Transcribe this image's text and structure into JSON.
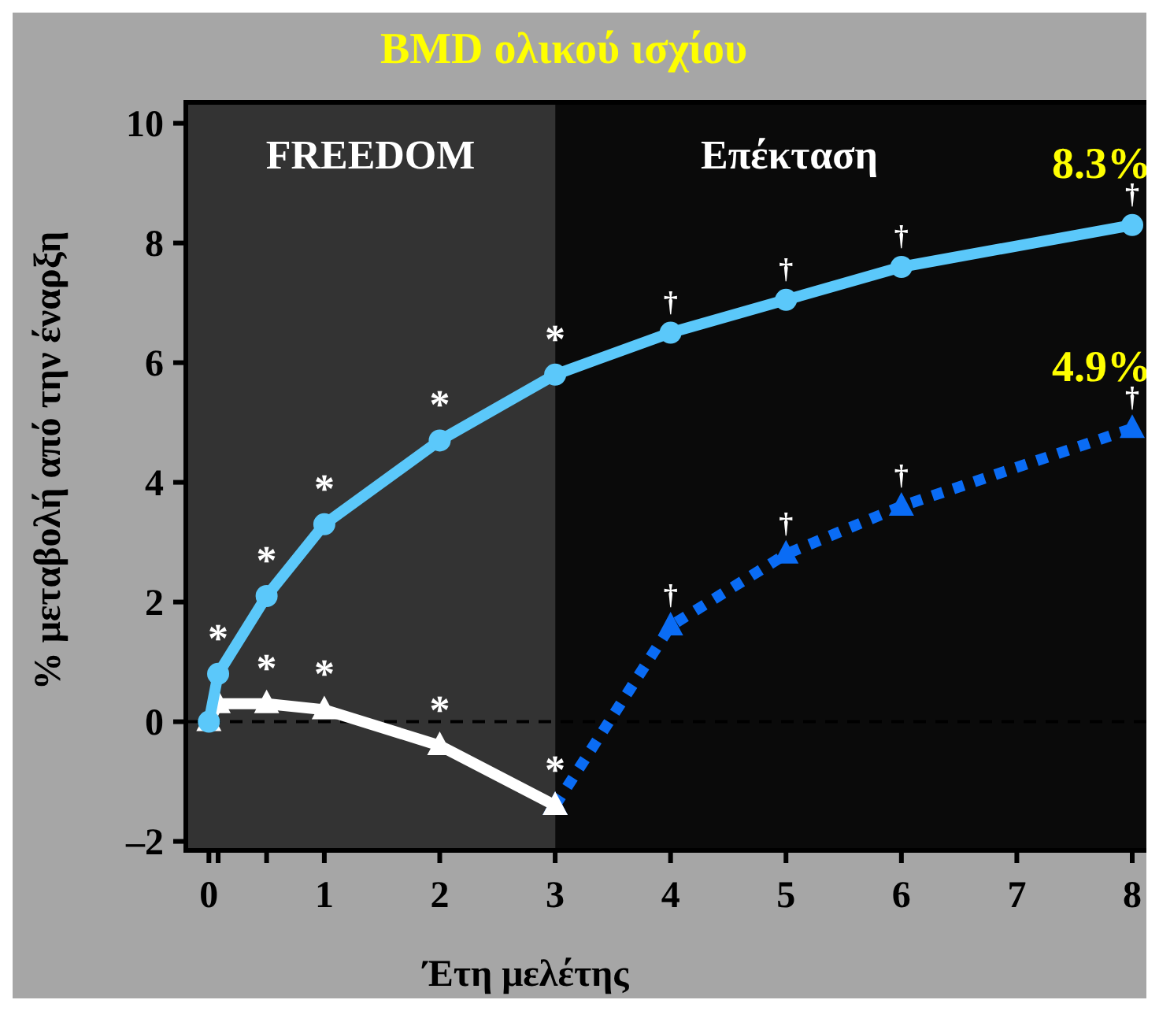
{
  "chart_data": {
    "type": "line",
    "title": "BMD ολικού  ισχίου",
    "xlabel": "Έτη μελέτης",
    "ylabel": "% μεταβολή από την έναρξη",
    "xlim": [
      -0.2,
      8.15
    ],
    "ylim": [
      -2.15,
      10.35
    ],
    "xticks": [
      0,
      {
        "value": 0.08,
        "label": null
      },
      {
        "value": 0.5,
        "label": null
      },
      1,
      2,
      3,
      4,
      5,
      6,
      7,
      8
    ],
    "yticks": [
      {
        "value": -2,
        "label": "–2"
      },
      0,
      2,
      4,
      6,
      8,
      10
    ],
    "grid": false,
    "series": [
      {
        "color": "#5bc8fa",
        "marker": "circle",
        "line_style": "solid",
        "x": [
          0,
          0.08,
          0.5,
          1,
          2,
          3,
          4,
          5,
          6,
          8
        ],
        "values": [
          0,
          0.8,
          2.1,
          3.3,
          4.7,
          5.8,
          6.5,
          7.05,
          7.6,
          8.3
        ]
      },
      {
        "color": "#ffffff",
        "marker": "triangle",
        "line_style": "solid",
        "x": [
          0,
          0.08,
          0.5,
          1,
          2,
          3
        ],
        "values": [
          0,
          0.3,
          0.3,
          0.2,
          -0.4,
          -1.4
        ]
      },
      {
        "color": "#0a6cf5",
        "marker": "triangle",
        "line_style": "dotted",
        "x": [
          3,
          4,
          5,
          6,
          8
        ],
        "values": [
          -1.4,
          1.6,
          2.8,
          3.6,
          4.9
        ]
      }
    ],
    "ref_lines": [
      {
        "axis": "y",
        "value": 0,
        "label": null,
        "color": "#000000",
        "line_style": "dashed"
      }
    ],
    "bands": [
      {
        "axis": "x",
        "from": -0.2,
        "to": 3,
        "label": "FREEDOM",
        "color": "#333333"
      },
      {
        "axis": "x",
        "from": 3,
        "to": 8.15,
        "label": "Επέκταση",
        "color": "#0a0a0a"
      }
    ],
    "annotations": [
      {
        "text": "*",
        "x": 0.08,
        "y": 0.8
      },
      {
        "text": "*",
        "x": 0.5,
        "y": 2.1
      },
      {
        "text": "*",
        "x": 1,
        "y": 3.3
      },
      {
        "text": "*",
        "x": 2,
        "y": 4.7
      },
      {
        "text": "*",
        "x": 3,
        "y": 5.8
      },
      {
        "text": "*",
        "x": 0.5,
        "y": 0.3
      },
      {
        "text": "*",
        "x": 1,
        "y": 0.2
      },
      {
        "text": "*",
        "x": 2,
        "y": -0.4
      },
      {
        "text": "*",
        "x": 3,
        "y": -1.4
      },
      {
        "text": "†",
        "x": 4,
        "y": 6.5
      },
      {
        "text": "†",
        "x": 5,
        "y": 7.05
      },
      {
        "text": "†",
        "x": 6,
        "y": 7.6
      },
      {
        "text": "†",
        "x": 8,
        "y": 8.3
      },
      {
        "text": "†",
        "x": 4,
        "y": 1.6
      },
      {
        "text": "†",
        "x": 5,
        "y": 2.8
      },
      {
        "text": "†",
        "x": 6,
        "y": 3.6
      },
      {
        "text": "†",
        "x": 8,
        "y": 4.9
      },
      {
        "text": "8.3%",
        "x": 8,
        "y": 8.3
      },
      {
        "text": "4.9%",
        "x": 8,
        "y": 4.9
      }
    ]
  }
}
